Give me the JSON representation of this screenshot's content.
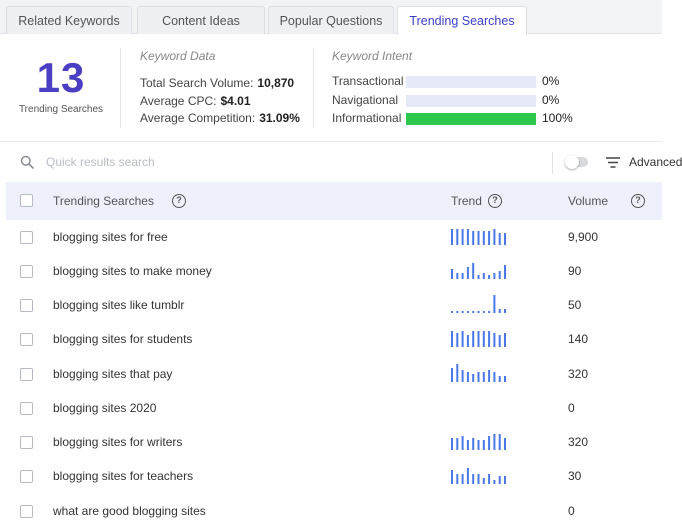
{
  "tabs": [
    {
      "label": "Related Keywords",
      "active": false
    },
    {
      "label": "Content Ideas",
      "active": false
    },
    {
      "label": "Popular Questions",
      "active": false
    },
    {
      "label": "Trending Searches",
      "active": true
    }
  ],
  "summary": {
    "count": "13",
    "count_label": "Trending Searches",
    "keyword_data": {
      "title": "Keyword Data",
      "total_volume_label": "Total Search Volume:",
      "total_volume": "10,870",
      "cpc_label": "Average CPC:",
      "cpc": "$4.01",
      "competition_label": "Average Competition:",
      "competition": "31.09%"
    },
    "keyword_intent": {
      "title": "Keyword Intent",
      "items": [
        {
          "label": "Transactional",
          "percent": "0%",
          "fraction": 0.0
        },
        {
          "label": "Navigational",
          "percent": "0%",
          "fraction": 0.0
        },
        {
          "label": "Informational",
          "percent": "100%",
          "fraction": 1.0
        }
      ]
    }
  },
  "search": {
    "placeholder": "Quick results search",
    "icon": "search-icon",
    "advanced_label": "Advanced"
  },
  "table": {
    "columns": [
      "Trending Searches",
      "Trend",
      "Volume"
    ],
    "rows": [
      {
        "keyword": "blogging sites for free",
        "volume": "9,900",
        "trend": [
          8,
          8,
          8,
          8,
          7,
          7,
          7,
          7,
          8,
          6,
          6
        ]
      },
      {
        "keyword": "blogging sites to make money",
        "volume": "90",
        "trend": [
          5,
          3,
          3,
          6,
          8,
          2,
          3,
          2,
          3,
          4,
          7
        ]
      },
      {
        "keyword": "blogging sites like tumblr",
        "volume": "50",
        "trend": [
          1,
          1,
          1,
          1,
          1,
          1,
          1,
          1,
          9,
          2,
          2
        ]
      },
      {
        "keyword": "blogging sites for students",
        "volume": "140",
        "trend": [
          8,
          7,
          8,
          6,
          8,
          8,
          8,
          8,
          7,
          6,
          7
        ]
      },
      {
        "keyword": "blogging sites that pay",
        "volume": "320",
        "trend": [
          7,
          9,
          6,
          5,
          4,
          5,
          5,
          6,
          5,
          3,
          3
        ]
      },
      {
        "keyword": "blogging sites 2020",
        "volume": "0",
        "trend": []
      },
      {
        "keyword": "blogging sites for writers",
        "volume": "320",
        "trend": [
          6,
          6,
          7,
          5,
          6,
          5,
          5,
          7,
          8,
          8,
          6
        ]
      },
      {
        "keyword": "blogging sites for teachers",
        "volume": "30",
        "trend": [
          7,
          5,
          5,
          8,
          5,
          5,
          3,
          5,
          2,
          4,
          4
        ]
      },
      {
        "keyword": "what are good blogging sites",
        "volume": "0",
        "trend": []
      }
    ]
  },
  "colors": {
    "accent": "#4a3fc2",
    "tab_active_text": "#3a3fc8",
    "trend_bar": "#4a78e6",
    "intent_fill": "#2ec84f",
    "intent_track": "#e6e9f7",
    "header_bg": "#eef1fb"
  }
}
